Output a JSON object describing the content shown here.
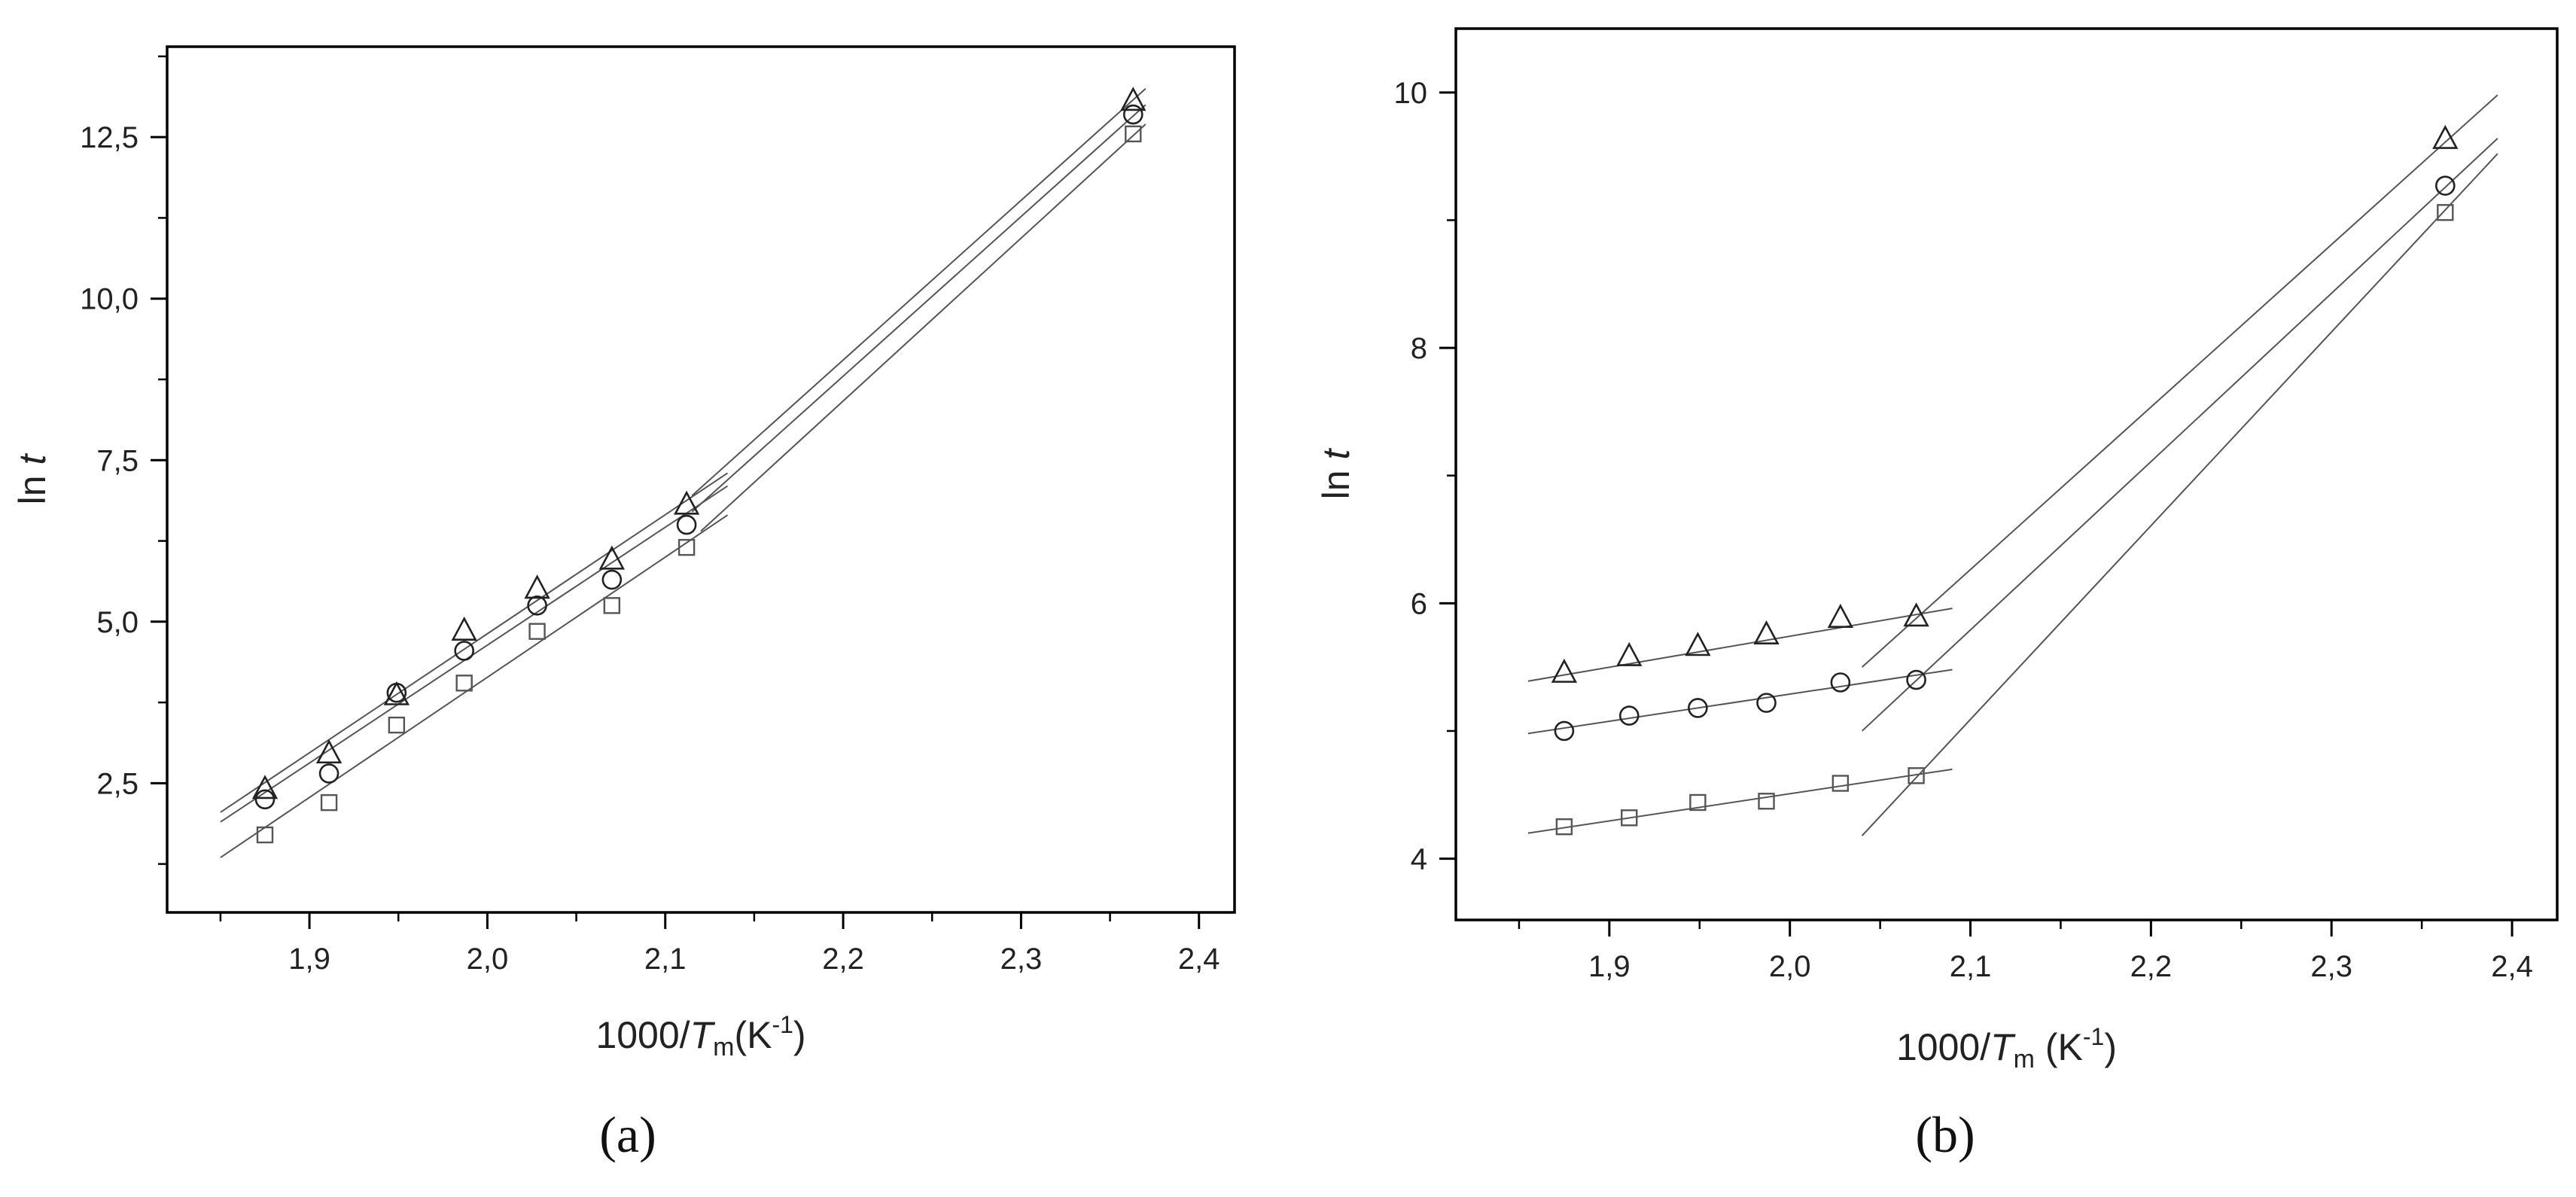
{
  "chart_data": [
    {
      "type": "scatter",
      "panel_label": "(a)",
      "xlabel": {
        "prefix": "1000/",
        "italic": "T",
        "sub": "m",
        "unit_open": "(K",
        "sup": "-1",
        "unit_close": ")"
      },
      "ylabel": {
        "prefix": "ln ",
        "italic": "t"
      },
      "xlim": [
        1.82,
        2.42
      ],
      "ylim": [
        0.5,
        13.9
      ],
      "xticks": [
        1.9,
        2.0,
        2.1,
        2.2,
        2.3,
        2.4
      ],
      "xtick_labels": [
        "1,9",
        "2,0",
        "2,1",
        "2,2",
        "2,3",
        "2,4"
      ],
      "yticks": [
        2.5,
        5.0,
        7.5,
        10.0,
        12.5
      ],
      "ytick_labels": [
        "2,5",
        "5,0",
        "7,5",
        "10,0",
        "12,5"
      ],
      "grid": false,
      "series": [
        {
          "marker": "triangle",
          "color": "#222222",
          "x": [
            1.875,
            1.911,
            1.949,
            1.987,
            2.028,
            2.07,
            2.112,
            2.363
          ],
          "y": [
            2.4,
            2.95,
            3.85,
            4.85,
            5.5,
            5.95,
            6.8,
            13.05
          ]
        },
        {
          "marker": "circle",
          "color": "#222222",
          "x": [
            1.875,
            1.911,
            1.949,
            1.987,
            2.028,
            2.07,
            2.112,
            2.363
          ],
          "y": [
            2.25,
            2.65,
            3.9,
            4.55,
            5.25,
            5.65,
            6.5,
            12.85
          ]
        },
        {
          "marker": "square",
          "color": "#555555",
          "x": [
            1.875,
            1.911,
            1.949,
            1.987,
            2.028,
            2.07,
            2.112,
            2.363
          ],
          "y": [
            1.7,
            2.2,
            3.4,
            4.05,
            4.85,
            5.25,
            6.15,
            12.55
          ]
        }
      ],
      "fit_lines": [
        {
          "x1": 1.85,
          "y1": 2.05,
          "x2": 2.135,
          "y2": 7.3
        },
        {
          "x1": 1.85,
          "y1": 1.9,
          "x2": 2.135,
          "y2": 7.1
        },
        {
          "x1": 1.85,
          "y1": 1.35,
          "x2": 2.135,
          "y2": 6.65
        },
        {
          "x1": 2.115,
          "y1": 6.95,
          "x2": 2.37,
          "y2": 13.25
        },
        {
          "x1": 2.115,
          "y1": 6.7,
          "x2": 2.37,
          "y2": 13.0
        },
        {
          "x1": 2.12,
          "y1": 6.4,
          "x2": 2.37,
          "y2": 12.7
        }
      ]
    },
    {
      "type": "scatter",
      "panel_label": "(b)",
      "xlabel": {
        "prefix": "1000/",
        "italic": "T",
        "sub": "m",
        "unit_open": " (K",
        "sup": "-1",
        "unit_close": ")"
      },
      "ylabel": {
        "prefix": "ln ",
        "italic": "t"
      },
      "xlim": [
        1.815,
        2.425
      ],
      "ylim": [
        3.52,
        10.5
      ],
      "xticks": [
        1.9,
        2.0,
        2.1,
        2.2,
        2.3,
        2.4
      ],
      "xtick_labels": [
        "1,9",
        "2,0",
        "2,1",
        "2,2",
        "2,3",
        "2,4"
      ],
      "yticks": [
        4,
        6,
        8,
        10
      ],
      "ytick_labels": [
        "4",
        "6",
        "8",
        "10"
      ],
      "grid": false,
      "series": [
        {
          "marker": "triangle",
          "color": "#222222",
          "x": [
            1.875,
            1.911,
            1.949,
            1.987,
            2.028,
            2.07,
            2.363
          ],
          "y": [
            5.45,
            5.58,
            5.66,
            5.75,
            5.88,
            5.89,
            9.63
          ]
        },
        {
          "marker": "circle",
          "color": "#222222",
          "x": [
            1.875,
            1.911,
            1.949,
            1.987,
            2.028,
            2.07,
            2.363
          ],
          "y": [
            5.0,
            5.12,
            5.18,
            5.22,
            5.38,
            5.4,
            9.27
          ]
        },
        {
          "marker": "square",
          "color": "#555555",
          "x": [
            1.875,
            1.911,
            1.949,
            1.987,
            2.028,
            2.07,
            2.363
          ],
          "y": [
            4.25,
            4.32,
            4.44,
            4.45,
            4.59,
            4.65,
            9.06
          ]
        }
      ],
      "fit_lines": [
        {
          "x1": 1.855,
          "y1": 5.39,
          "x2": 2.09,
          "y2": 5.96
        },
        {
          "x1": 1.855,
          "y1": 4.98,
          "x2": 2.09,
          "y2": 5.48
        },
        {
          "x1": 1.855,
          "y1": 4.2,
          "x2": 2.09,
          "y2": 4.7
        },
        {
          "x1": 2.04,
          "y1": 5.5,
          "x2": 2.392,
          "y2": 9.98
        },
        {
          "x1": 2.04,
          "y1": 5.0,
          "x2": 2.392,
          "y2": 9.64
        },
        {
          "x1": 2.04,
          "y1": 4.18,
          "x2": 2.392,
          "y2": 9.52
        }
      ]
    }
  ]
}
